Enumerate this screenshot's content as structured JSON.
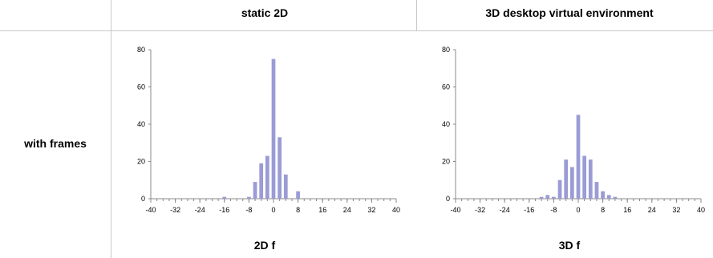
{
  "headers": {
    "col1": "static 2D",
    "col2": "3D desktop virtual environment"
  },
  "row_label": "with frames",
  "x_names": [
    "2D f",
    "3D f"
  ],
  "colors": {
    "bar": "#9b9bd6",
    "axis": "#888888",
    "divider": "#c8c8c8"
  },
  "chart_data": [
    {
      "type": "bar",
      "x": [
        -16,
        -8,
        -6,
        -4,
        -2,
        0,
        2,
        4,
        8
      ],
      "values": [
        1,
        1,
        9,
        19,
        23,
        75,
        33,
        13,
        4
      ],
      "xticks": [
        "-40",
        "-32",
        "-24",
        "-16",
        "-8",
        "0",
        "8",
        "16",
        "24",
        "32",
        "40"
      ],
      "yticks": [
        "0",
        "20",
        "40",
        "60",
        "80"
      ],
      "xlim": [
        -40,
        40
      ],
      "ylim": [
        0,
        80
      ],
      "xlabel": "2D f",
      "ylabel": ""
    },
    {
      "type": "bar",
      "x": [
        -12,
        -10,
        -8,
        -6,
        -4,
        -2,
        0,
        2,
        4,
        6,
        8,
        10,
        12
      ],
      "values": [
        1,
        2,
        1,
        10,
        21,
        17,
        45,
        23,
        21,
        9,
        4,
        2,
        1
      ],
      "xticks": [
        "-40",
        "-32",
        "-24",
        "-16",
        "-8",
        "0",
        "8",
        "16",
        "24",
        "32",
        "40"
      ],
      "yticks": [
        "0",
        "20",
        "40",
        "60",
        "80"
      ],
      "xlim": [
        -40,
        40
      ],
      "ylim": [
        0,
        80
      ],
      "xlabel": "3D f",
      "ylabel": ""
    }
  ]
}
